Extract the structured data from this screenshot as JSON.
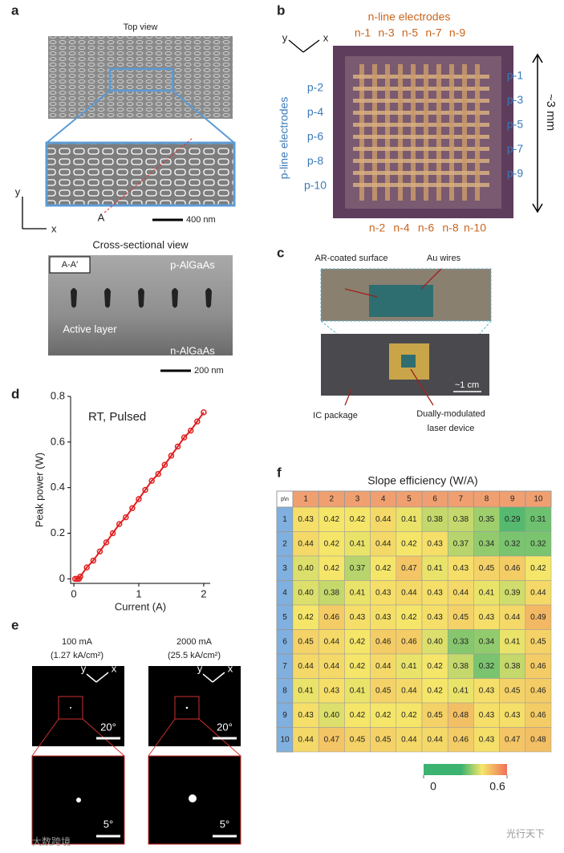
{
  "panel_a": {
    "label": "a",
    "top_view_title": "Top view",
    "marker_a_prime": "A′",
    "marker_a": "A",
    "axis_y": "y",
    "axis_x": "x",
    "scale_top": "400 nm",
    "cross_title": "Cross-sectional view",
    "cross_tag": "A-A′",
    "layer_top": "p-AlGaAs",
    "layer_mid": "Active layer",
    "layer_bottom": "n-AlGaAs",
    "scale_cross": "200 nm"
  },
  "panel_b": {
    "label": "b",
    "axis_y": "y",
    "axis_x": "x",
    "n_title": "n-line electrodes",
    "n_top": [
      "n-1",
      "n-3",
      "n-5",
      "n-7",
      "n-9"
    ],
    "n_bottom": [
      "n-2",
      "n-4",
      "n-6",
      "n-8",
      "n-10"
    ],
    "p_left": [
      "p-2",
      "p-4",
      "p-6",
      "p-8",
      "p-10"
    ],
    "p_right": [
      "p-1",
      "p-3",
      "p-5",
      "p-7",
      "p-9"
    ],
    "p_title": "p-line electrodes",
    "size": "~3 mm"
  },
  "panel_c": {
    "label": "c",
    "ar_label": "AR-coated surface",
    "au_label": "Au wires",
    "scale": "~1 cm",
    "ic_label": "IC package",
    "device_label_1": "Dually-modulated",
    "device_label_2": "laser device"
  },
  "chart_data": {
    "type": "line",
    "label": "d",
    "annotation": "RT, Pulsed",
    "x_label": "Current (A)",
    "y_label": "Peak power (W)",
    "color": "#e02020",
    "x": [
      0.02,
      0.05,
      0.08,
      0.1,
      0.2,
      0.3,
      0.4,
      0.5,
      0.6,
      0.7,
      0.8,
      0.9,
      1.0,
      1.1,
      1.2,
      1.3,
      1.4,
      1.5,
      1.6,
      1.7,
      1.8,
      1.9,
      2.0
    ],
    "y": [
      0,
      0,
      0,
      0.01,
      0.05,
      0.08,
      0.12,
      0.16,
      0.2,
      0.24,
      0.27,
      0.31,
      0.35,
      0.39,
      0.43,
      0.46,
      0.5,
      0.54,
      0.58,
      0.62,
      0.65,
      0.69,
      0.73
    ],
    "xlim": [
      -0.05,
      2.1
    ],
    "ylim": [
      -0.02,
      0.8
    ],
    "xticks": [
      0,
      1,
      2
    ],
    "yticks": [
      0,
      0.2,
      0.4,
      0.6,
      0.8
    ]
  },
  "panel_e": {
    "label": "e",
    "left_current": "100 mA",
    "left_density": "(1.27 kA/cm²)",
    "right_current": "2000 mA",
    "right_density": "(25.5 kA/cm²)",
    "axis_y": "y",
    "axis_x": "x",
    "scale_wide": "20°",
    "scale_zoom": "5°"
  },
  "panel_f": {
    "label": "f",
    "title": "Slope efficiency (W/A)",
    "corner": "p\\n",
    "columns": [
      1,
      2,
      3,
      4,
      5,
      6,
      7,
      8,
      9,
      10
    ],
    "rows": [
      1,
      2,
      3,
      4,
      5,
      6,
      7,
      8,
      9,
      10
    ],
    "values": [
      [
        0.43,
        0.42,
        0.42,
        0.44,
        0.41,
        0.38,
        0.38,
        0.35,
        0.29,
        0.31
      ],
      [
        0.44,
        0.42,
        0.41,
        0.44,
        0.42,
        0.43,
        0.37,
        0.34,
        0.32,
        0.32
      ],
      [
        0.4,
        0.42,
        0.37,
        0.42,
        0.47,
        0.41,
        0.43,
        0.45,
        0.46,
        0.42
      ],
      [
        0.4,
        0.38,
        0.41,
        0.43,
        0.44,
        0.43,
        0.44,
        0.41,
        0.39,
        0.44
      ],
      [
        0.42,
        0.46,
        0.43,
        0.43,
        0.42,
        0.43,
        0.45,
        0.43,
        0.44,
        0.49
      ],
      [
        0.45,
        0.44,
        0.42,
        0.46,
        0.46,
        0.4,
        0.33,
        0.34,
        0.41,
        0.45
      ],
      [
        0.44,
        0.44,
        0.42,
        0.44,
        0.41,
        0.42,
        0.38,
        0.32,
        0.38,
        0.46
      ],
      [
        0.41,
        0.43,
        0.41,
        0.45,
        0.44,
        0.42,
        0.41,
        0.43,
        0.45,
        0.46
      ],
      [
        0.43,
        0.4,
        0.42,
        0.42,
        0.42,
        0.45,
        0.48,
        0.43,
        0.43,
        0.46
      ],
      [
        0.44,
        0.47,
        0.45,
        0.45,
        0.44,
        0.44,
        0.46,
        0.43,
        0.47,
        0.48
      ]
    ],
    "value_labels": [
      [
        "0.43",
        "0.42",
        "0.42",
        "0.44",
        "0.41",
        "0.38",
        "0.38",
        "0.35",
        "0.29",
        "0.31"
      ],
      [
        "0.44",
        "0.42",
        "0.41",
        "0.44",
        "0.42",
        "0.43",
        "0.37",
        "0.34",
        "0.32",
        "0.32"
      ],
      [
        "0.40",
        "0.42",
        "0.37",
        "0.42",
        "0.47",
        "0.41",
        "0.43",
        "0.45",
        "0.46",
        "0.42"
      ],
      [
        "0.40",
        "0.38",
        "0.41",
        "0.43",
        "0.44",
        "0.43",
        "0.44",
        "0.41",
        "0.39",
        "0.44"
      ],
      [
        "0.42",
        "0.46",
        "0.43",
        "0.43",
        "0.42",
        "0.43",
        "0.45",
        "0.43",
        "0.44",
        "0.49"
      ],
      [
        "0.45",
        "0.44",
        "0.42",
        "0.46",
        "0.46",
        "0.40",
        "0.33",
        "0.34",
        "0.41",
        "0.45"
      ],
      [
        "0.44",
        "0.44",
        "0.42",
        "0.44",
        "0.41",
        "0.42",
        "0.38",
        "0.32",
        "0.38",
        "0.46"
      ],
      [
        "0.41",
        "0.43",
        "0.41",
        "0.45",
        "0.44",
        "0.42",
        "0.41",
        "0.43",
        "0.45",
        "0.46"
      ],
      [
        "0.43",
        "0.40",
        "0.42",
        "0.42",
        "0.42",
        "0.45",
        "0.48",
        "0.43",
        "0.43",
        "0.46"
      ],
      [
        "0.44",
        "0.47",
        "0.45",
        "0.45",
        "0.44",
        "0.44",
        "0.46",
        "0.43",
        "0.47",
        "0.48"
      ]
    ],
    "clim": [
      0,
      0.6
    ],
    "colorbar_ticks": [
      0,
      0.6
    ]
  },
  "watermarks": {
    "left": "大数跨境",
    "right": "光行天下"
  }
}
